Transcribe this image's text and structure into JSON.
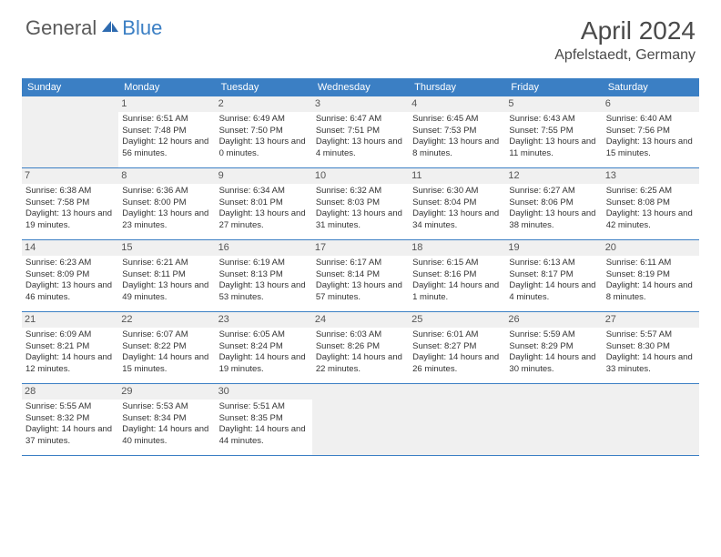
{
  "logo": {
    "general": "General",
    "blue": "Blue"
  },
  "title": "April 2024",
  "location": "Apfelstaedt, Germany",
  "calendar": {
    "header_bg": "#3b7fc4",
    "header_fg": "#ffffff",
    "row_border": "#3b7fc4",
    "empty_bg": "#f0f0f0",
    "daynum_bg": "#f0f0f0",
    "days": [
      "Sunday",
      "Monday",
      "Tuesday",
      "Wednesday",
      "Thursday",
      "Friday",
      "Saturday"
    ],
    "weeks": [
      [
        null,
        {
          "n": "1",
          "sr": "Sunrise: 6:51 AM",
          "ss": "Sunset: 7:48 PM",
          "dl": "Daylight: 12 hours and 56 minutes."
        },
        {
          "n": "2",
          "sr": "Sunrise: 6:49 AM",
          "ss": "Sunset: 7:50 PM",
          "dl": "Daylight: 13 hours and 0 minutes."
        },
        {
          "n": "3",
          "sr": "Sunrise: 6:47 AM",
          "ss": "Sunset: 7:51 PM",
          "dl": "Daylight: 13 hours and 4 minutes."
        },
        {
          "n": "4",
          "sr": "Sunrise: 6:45 AM",
          "ss": "Sunset: 7:53 PM",
          "dl": "Daylight: 13 hours and 8 minutes."
        },
        {
          "n": "5",
          "sr": "Sunrise: 6:43 AM",
          "ss": "Sunset: 7:55 PM",
          "dl": "Daylight: 13 hours and 11 minutes."
        },
        {
          "n": "6",
          "sr": "Sunrise: 6:40 AM",
          "ss": "Sunset: 7:56 PM",
          "dl": "Daylight: 13 hours and 15 minutes."
        }
      ],
      [
        {
          "n": "7",
          "sr": "Sunrise: 6:38 AM",
          "ss": "Sunset: 7:58 PM",
          "dl": "Daylight: 13 hours and 19 minutes."
        },
        {
          "n": "8",
          "sr": "Sunrise: 6:36 AM",
          "ss": "Sunset: 8:00 PM",
          "dl": "Daylight: 13 hours and 23 minutes."
        },
        {
          "n": "9",
          "sr": "Sunrise: 6:34 AM",
          "ss": "Sunset: 8:01 PM",
          "dl": "Daylight: 13 hours and 27 minutes."
        },
        {
          "n": "10",
          "sr": "Sunrise: 6:32 AM",
          "ss": "Sunset: 8:03 PM",
          "dl": "Daylight: 13 hours and 31 minutes."
        },
        {
          "n": "11",
          "sr": "Sunrise: 6:30 AM",
          "ss": "Sunset: 8:04 PM",
          "dl": "Daylight: 13 hours and 34 minutes."
        },
        {
          "n": "12",
          "sr": "Sunrise: 6:27 AM",
          "ss": "Sunset: 8:06 PM",
          "dl": "Daylight: 13 hours and 38 minutes."
        },
        {
          "n": "13",
          "sr": "Sunrise: 6:25 AM",
          "ss": "Sunset: 8:08 PM",
          "dl": "Daylight: 13 hours and 42 minutes."
        }
      ],
      [
        {
          "n": "14",
          "sr": "Sunrise: 6:23 AM",
          "ss": "Sunset: 8:09 PM",
          "dl": "Daylight: 13 hours and 46 minutes."
        },
        {
          "n": "15",
          "sr": "Sunrise: 6:21 AM",
          "ss": "Sunset: 8:11 PM",
          "dl": "Daylight: 13 hours and 49 minutes."
        },
        {
          "n": "16",
          "sr": "Sunrise: 6:19 AM",
          "ss": "Sunset: 8:13 PM",
          "dl": "Daylight: 13 hours and 53 minutes."
        },
        {
          "n": "17",
          "sr": "Sunrise: 6:17 AM",
          "ss": "Sunset: 8:14 PM",
          "dl": "Daylight: 13 hours and 57 minutes."
        },
        {
          "n": "18",
          "sr": "Sunrise: 6:15 AM",
          "ss": "Sunset: 8:16 PM",
          "dl": "Daylight: 14 hours and 1 minute."
        },
        {
          "n": "19",
          "sr": "Sunrise: 6:13 AM",
          "ss": "Sunset: 8:17 PM",
          "dl": "Daylight: 14 hours and 4 minutes."
        },
        {
          "n": "20",
          "sr": "Sunrise: 6:11 AM",
          "ss": "Sunset: 8:19 PM",
          "dl": "Daylight: 14 hours and 8 minutes."
        }
      ],
      [
        {
          "n": "21",
          "sr": "Sunrise: 6:09 AM",
          "ss": "Sunset: 8:21 PM",
          "dl": "Daylight: 14 hours and 12 minutes."
        },
        {
          "n": "22",
          "sr": "Sunrise: 6:07 AM",
          "ss": "Sunset: 8:22 PM",
          "dl": "Daylight: 14 hours and 15 minutes."
        },
        {
          "n": "23",
          "sr": "Sunrise: 6:05 AM",
          "ss": "Sunset: 8:24 PM",
          "dl": "Daylight: 14 hours and 19 minutes."
        },
        {
          "n": "24",
          "sr": "Sunrise: 6:03 AM",
          "ss": "Sunset: 8:26 PM",
          "dl": "Daylight: 14 hours and 22 minutes."
        },
        {
          "n": "25",
          "sr": "Sunrise: 6:01 AM",
          "ss": "Sunset: 8:27 PM",
          "dl": "Daylight: 14 hours and 26 minutes."
        },
        {
          "n": "26",
          "sr": "Sunrise: 5:59 AM",
          "ss": "Sunset: 8:29 PM",
          "dl": "Daylight: 14 hours and 30 minutes."
        },
        {
          "n": "27",
          "sr": "Sunrise: 5:57 AM",
          "ss": "Sunset: 8:30 PM",
          "dl": "Daylight: 14 hours and 33 minutes."
        }
      ],
      [
        {
          "n": "28",
          "sr": "Sunrise: 5:55 AM",
          "ss": "Sunset: 8:32 PM",
          "dl": "Daylight: 14 hours and 37 minutes."
        },
        {
          "n": "29",
          "sr": "Sunrise: 5:53 AM",
          "ss": "Sunset: 8:34 PM",
          "dl": "Daylight: 14 hours and 40 minutes."
        },
        {
          "n": "30",
          "sr": "Sunrise: 5:51 AM",
          "ss": "Sunset: 8:35 PM",
          "dl": "Daylight: 14 hours and 44 minutes."
        },
        null,
        null,
        null,
        null
      ]
    ]
  }
}
